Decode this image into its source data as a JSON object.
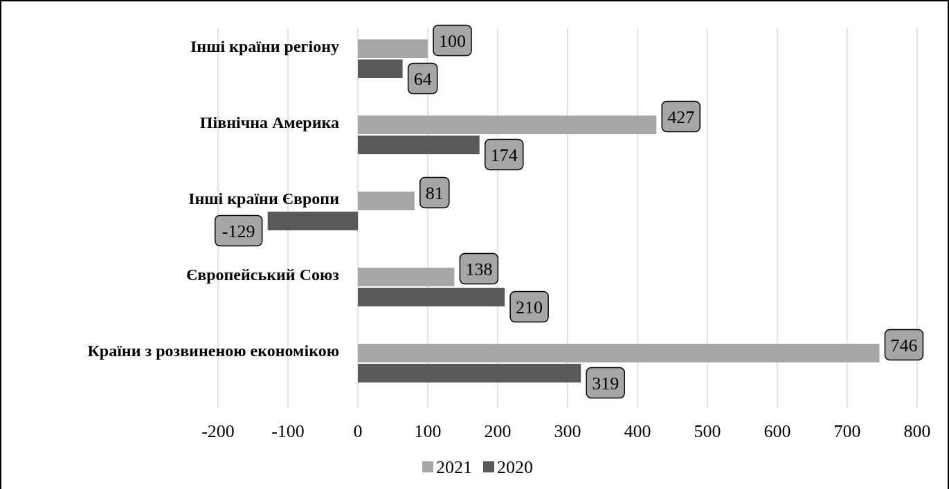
{
  "chart_data": {
    "type": "bar",
    "orientation": "horizontal",
    "categories": [
      "Інші країни регіону",
      "Північна Америка",
      "Інші країни Європи",
      "Європейський Союз",
      "Країни з розвиненою економікою"
    ],
    "series": [
      {
        "name": "2021",
        "color": "#a6a6a6",
        "values": [
          100,
          427,
          81,
          138,
          746
        ]
      },
      {
        "name": "2020",
        "color": "#595959",
        "values": [
          64,
          174,
          -129,
          210,
          319
        ]
      }
    ],
    "xlim": [
      -200,
      800
    ],
    "xticks": [
      -200,
      -100,
      0,
      100,
      200,
      300,
      400,
      500,
      600,
      700,
      800
    ],
    "grid": "x",
    "legend": "bottom",
    "data_labels": true
  }
}
